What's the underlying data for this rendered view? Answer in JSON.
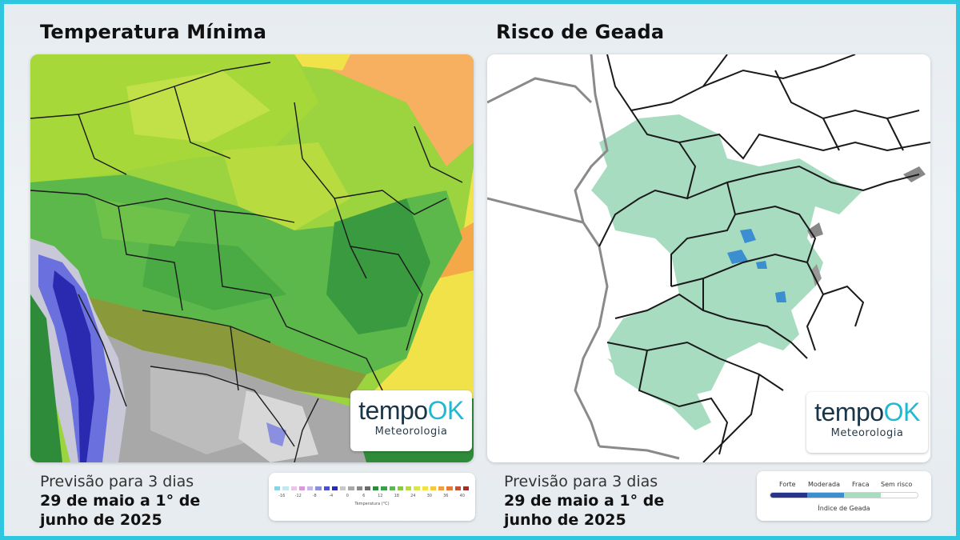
{
  "left": {
    "title": "Temperatura Mínima",
    "forecast_line1": "Previsão para 3 dias",
    "forecast_line2": "29 de maio a 1° de junho de 2025",
    "legend": {
      "title": "Temperatura (°C)",
      "ticks": [
        "-16",
        "-12",
        "-8",
        "-4",
        "0",
        "6",
        "12",
        "18",
        "24",
        "30",
        "36",
        "40"
      ],
      "colors": [
        "#7fd8e6",
        "#bfe9ef",
        "#e8c6e8",
        "#d79bd8",
        "#c5b7e6",
        "#8a8fe0",
        "#4a4fd6",
        "#2a2ab0",
        "#c8c8c8",
        "#a8a8a8",
        "#888888",
        "#6a6a6a",
        "#2e8b3a",
        "#3aa04a",
        "#5ab84e",
        "#86cc3c",
        "#b4dc3a",
        "#d8e84a",
        "#f2e24a",
        "#f5c842",
        "#f0a040",
        "#e87a38",
        "#c8502e",
        "#a03028"
      ]
    }
  },
  "right": {
    "title": "Risco de Geada",
    "forecast_line1": "Previsão para 3 dias",
    "forecast_line2": "29 de maio a 1° de junho de 2025",
    "legend": {
      "title": "Índice de Geada",
      "labels": [
        "Forte",
        "Moderada",
        "Fraca",
        "Sem risco"
      ],
      "colors": [
        "#27348b",
        "#3b8fd0",
        "#a8dcc0",
        "#ffffff"
      ]
    }
  },
  "logo": {
    "word_a": "tempo",
    "word_b": "OK",
    "sub": "Meteorologia"
  }
}
